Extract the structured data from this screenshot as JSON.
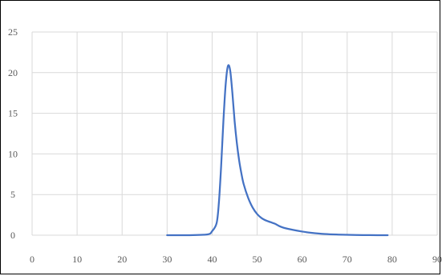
{
  "chart_data": {
    "type": "line",
    "title": "",
    "xlabel": "",
    "ylabel": "",
    "xlim": [
      0,
      90
    ],
    "ylim": [
      0,
      25
    ],
    "xticks": [
      0,
      10,
      20,
      30,
      40,
      50,
      60,
      70,
      80,
      90
    ],
    "yticks": [
      0,
      5,
      10,
      15,
      20,
      25
    ],
    "grid": true,
    "legend": "none",
    "colors": {
      "line": "#4472c4",
      "grid": "#d9d9d9",
      "tick_text": "#595959",
      "border": "#000000"
    },
    "series": [
      {
        "x": [
          30,
          35,
          39,
          40,
          41,
          41.5,
          42,
          42.5,
          43,
          43.5,
          44,
          44.5,
          45,
          45.5,
          46,
          46.5,
          47,
          48,
          49,
          50,
          51,
          52,
          53,
          54,
          55,
          56,
          58,
          60,
          62,
          65,
          68,
          72,
          75,
          79
        ],
        "y": [
          0,
          0,
          0.1,
          0.5,
          1.5,
          4,
          8.5,
          14,
          18.5,
          20.8,
          20.3,
          17.5,
          14,
          11.3,
          9.2,
          7.6,
          6.3,
          4.6,
          3.4,
          2.6,
          2.1,
          1.8,
          1.6,
          1.4,
          1.1,
          0.9,
          0.65,
          0.45,
          0.3,
          0.15,
          0.08,
          0.03,
          0.01,
          0
        ]
      }
    ]
  }
}
